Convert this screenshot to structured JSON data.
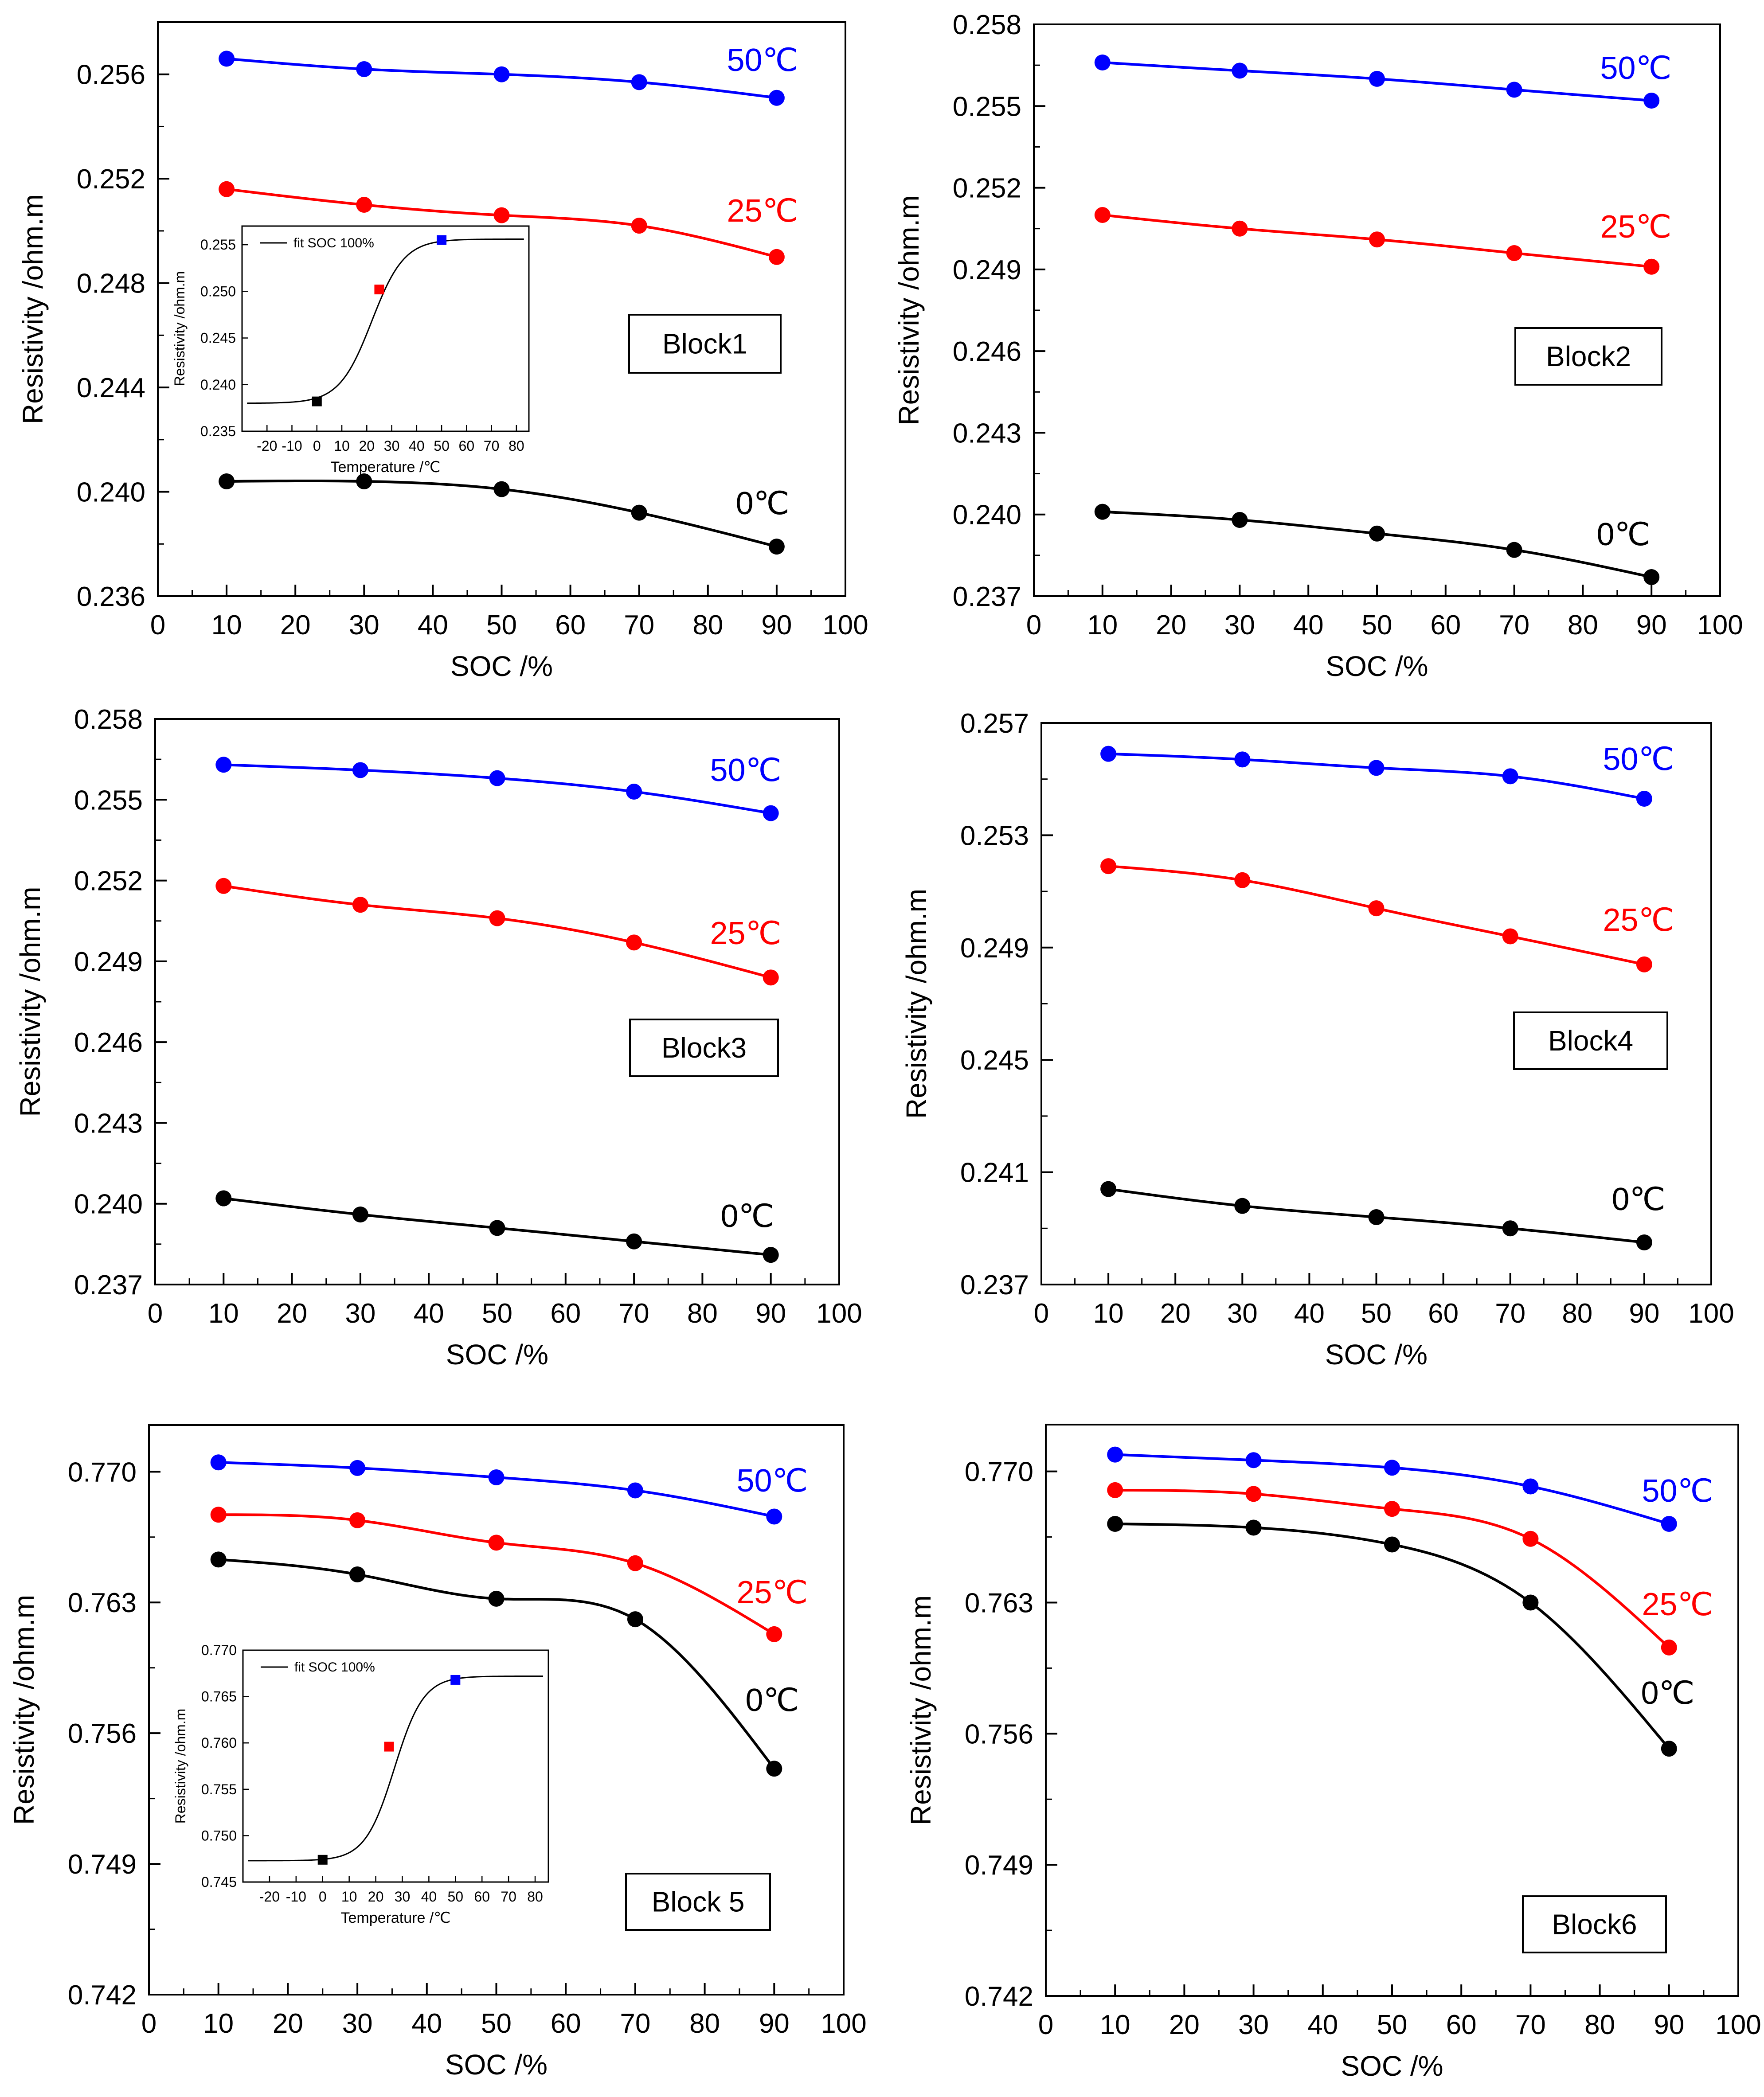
{
  "chart_data": [
    {
      "type": "scatter",
      "title": "",
      "block_label": "Block1",
      "xlabel": "SOC /%",
      "ylabel": "Resistivity /ohm.m",
      "xlim": [
        0,
        100
      ],
      "ylim": [
        0.236,
        0.258
      ],
      "xticks": [
        "0",
        "10",
        "20",
        "30",
        "40",
        "50",
        "60",
        "70",
        "80",
        "90",
        "100"
      ],
      "yticks": [
        "0.236",
        "0.240",
        "0.244",
        "0.248",
        "0.252",
        "0.256"
      ],
      "ytick_values": [
        0.236,
        0.24,
        0.244,
        0.248,
        0.252,
        0.256
      ],
      "series": [
        {
          "name": "50℃",
          "color": "#0000ff",
          "x": [
            10,
            30,
            50,
            70,
            90
          ],
          "y": [
            0.2566,
            0.2562,
            0.256,
            0.2557,
            0.2551
          ]
        },
        {
          "name": "25℃",
          "color": "#ff0000",
          "x": [
            10,
            30,
            50,
            70,
            90
          ],
          "y": [
            0.2516,
            0.251,
            0.2506,
            0.2502,
            0.249
          ]
        },
        {
          "name": "0℃",
          "color": "#000000",
          "x": [
            10,
            30,
            50,
            70,
            90
          ],
          "y": [
            0.2404,
            0.2404,
            0.2401,
            0.2392,
            0.2379
          ]
        }
      ],
      "inset": {
        "legend": "fit SOC 100%",
        "xlabel": "Temperature /℃",
        "ylabel": "Resistivity /ohm.m",
        "xlim": [
          -30,
          85
        ],
        "ylim": [
          0.235,
          0.257
        ],
        "xticks": [
          "-20",
          "-10",
          "0",
          "10",
          "20",
          "30",
          "40",
          "50",
          "60",
          "70",
          "80"
        ],
        "xtick_values": [
          -20,
          -10,
          0,
          10,
          20,
          30,
          40,
          50,
          60,
          70,
          80
        ],
        "yticks": [
          "0.235",
          "0.240",
          "0.245",
          "0.250",
          "0.255"
        ],
        "ytick_values": [
          0.235,
          0.24,
          0.245,
          0.25,
          0.255
        ],
        "fit": {
          "bottom": 0.238,
          "top": 0.2556,
          "center": 22,
          "width": 6.5
        },
        "points": [
          {
            "x": 0,
            "y": 0.2382,
            "color": "#000000"
          },
          {
            "x": 25,
            "y": 0.2502,
            "color": "#ff0000"
          },
          {
            "x": 50,
            "y": 0.2555,
            "color": "#0000ff"
          }
        ]
      }
    },
    {
      "type": "scatter",
      "title": "",
      "block_label": "Block2",
      "xlabel": "SOC /%",
      "ylabel": "Resistivity /ohm.m",
      "xlim": [
        0,
        100
      ],
      "ylim": [
        0.237,
        0.258
      ],
      "xticks": [
        "0",
        "10",
        "20",
        "30",
        "40",
        "50",
        "60",
        "70",
        "80",
        "90",
        "100"
      ],
      "yticks": [
        "0.237",
        "0.240",
        "0.243",
        "0.246",
        "0.249",
        "0.252",
        "0.255",
        "0.258"
      ],
      "ytick_values": [
        0.237,
        0.24,
        0.243,
        0.246,
        0.249,
        0.252,
        0.255,
        0.258
      ],
      "series": [
        {
          "name": "50℃",
          "color": "#0000ff",
          "x": [
            10,
            30,
            50,
            70,
            90
          ],
          "y": [
            0.2566,
            0.2563,
            0.256,
            0.2556,
            0.2552
          ]
        },
        {
          "name": "25℃",
          "color": "#ff0000",
          "x": [
            10,
            30,
            50,
            70,
            90
          ],
          "y": [
            0.251,
            0.2505,
            0.2501,
            0.2496,
            0.2491
          ]
        },
        {
          "name": "0℃",
          "color": "#000000",
          "x": [
            10,
            30,
            50,
            70,
            90
          ],
          "y": [
            0.2401,
            0.2398,
            0.2393,
            0.2387,
            0.2377
          ]
        }
      ]
    },
    {
      "type": "scatter",
      "title": "",
      "block_label": "Block3",
      "xlabel": "SOC /%",
      "ylabel": "Resistivity /ohm.m",
      "xlim": [
        0,
        100
      ],
      "ylim": [
        0.237,
        0.258
      ],
      "xticks": [
        "0",
        "10",
        "20",
        "30",
        "40",
        "50",
        "60",
        "70",
        "80",
        "90",
        "100"
      ],
      "yticks": [
        "0.237",
        "0.240",
        "0.243",
        "0.246",
        "0.249",
        "0.252",
        "0.255",
        "0.258"
      ],
      "ytick_values": [
        0.237,
        0.24,
        0.243,
        0.246,
        0.249,
        0.252,
        0.255,
        0.258
      ],
      "series": [
        {
          "name": "50℃",
          "color": "#0000ff",
          "x": [
            10,
            30,
            50,
            70,
            90
          ],
          "y": [
            0.2563,
            0.2561,
            0.2558,
            0.2553,
            0.2545
          ]
        },
        {
          "name": "25℃",
          "color": "#ff0000",
          "x": [
            10,
            30,
            50,
            70,
            90
          ],
          "y": [
            0.2518,
            0.2511,
            0.2506,
            0.2497,
            0.2484
          ]
        },
        {
          "name": "0℃",
          "color": "#000000",
          "x": [
            10,
            30,
            50,
            70,
            90
          ],
          "y": [
            0.2402,
            0.2396,
            0.2391,
            0.2386,
            0.2381
          ]
        }
      ]
    },
    {
      "type": "scatter",
      "title": "",
      "block_label": "Block4",
      "xlabel": "SOC /%",
      "ylabel": "Resistivity /ohm.m",
      "xlim": [
        0,
        100
      ],
      "ylim": [
        0.237,
        0.257
      ],
      "xticks": [
        "0",
        "10",
        "20",
        "30",
        "40",
        "50",
        "60",
        "70",
        "80",
        "90",
        "100"
      ],
      "yticks": [
        "0.237",
        "0.241",
        "0.245",
        "0.249",
        "0.253",
        "0.257"
      ],
      "ytick_values": [
        0.237,
        0.241,
        0.245,
        0.249,
        0.253,
        0.257
      ],
      "series": [
        {
          "name": "50℃",
          "color": "#0000ff",
          "x": [
            10,
            30,
            50,
            70,
            90
          ],
          "y": [
            0.2559,
            0.2557,
            0.2554,
            0.2551,
            0.2543
          ]
        },
        {
          "name": "25℃",
          "color": "#ff0000",
          "x": [
            10,
            30,
            50,
            70,
            90
          ],
          "y": [
            0.2519,
            0.2514,
            0.2504,
            0.2494,
            0.2484
          ]
        },
        {
          "name": "0℃",
          "color": "#000000",
          "x": [
            10,
            30,
            50,
            70,
            90
          ],
          "y": [
            0.2404,
            0.2398,
            0.2394,
            0.239,
            0.2385
          ]
        }
      ]
    },
    {
      "type": "scatter",
      "title": "",
      "block_label": "Block 5",
      "xlabel": "SOC /%",
      "ylabel": "Resistivity /ohm.m",
      "xlim": [
        0,
        100
      ],
      "ylim": [
        0.742,
        0.7725
      ],
      "xticks": [
        "0",
        "10",
        "20",
        "30",
        "40",
        "50",
        "60",
        "70",
        "80",
        "90",
        "100"
      ],
      "yticks": [
        "0.742",
        "0.749",
        "0.756",
        "0.763",
        "0.770"
      ],
      "ytick_values": [
        0.742,
        0.749,
        0.756,
        0.763,
        0.77
      ],
      "series": [
        {
          "name": "50℃",
          "color": "#0000ff",
          "x": [
            10,
            30,
            50,
            70,
            90
          ],
          "y": [
            0.7705,
            0.7702,
            0.7697,
            0.769,
            0.7676
          ]
        },
        {
          "name": "25℃",
          "color": "#ff0000",
          "x": [
            10,
            30,
            50,
            70,
            90
          ],
          "y": [
            0.7677,
            0.7674,
            0.7662,
            0.7651,
            0.7613
          ]
        },
        {
          "name": "0℃",
          "color": "#000000",
          "x": [
            10,
            30,
            50,
            70,
            90
          ],
          "y": [
            0.7653,
            0.7645,
            0.7632,
            0.7621,
            0.7541
          ]
        }
      ],
      "inset": {
        "legend": "fit SOC 100%",
        "xlabel": "Temperature /℃",
        "ylabel": "Resistivity /ohm.m",
        "xlim": [
          -30,
          85
        ],
        "ylim": [
          0.745,
          0.77
        ],
        "xticks": [
          "-20",
          "-10",
          "0",
          "10",
          "20",
          "30",
          "40",
          "50",
          "60",
          "70",
          "80"
        ],
        "xtick_values": [
          -20,
          -10,
          0,
          10,
          20,
          30,
          40,
          50,
          60,
          70,
          80
        ],
        "yticks": [
          "0.745",
          "0.750",
          "0.755",
          "0.760",
          "0.765",
          "0.770"
        ],
        "ytick_values": [
          0.745,
          0.75,
          0.755,
          0.76,
          0.765,
          0.77
        ],
        "fit": {
          "bottom": 0.7473,
          "top": 0.7672,
          "center": 27,
          "width": 5.5
        },
        "points": [
          {
            "x": 0,
            "y": 0.7474,
            "color": "#000000"
          },
          {
            "x": 25,
            "y": 0.7596,
            "color": "#ff0000"
          },
          {
            "x": 50,
            "y": 0.7668,
            "color": "#0000ff"
          }
        ]
      }
    },
    {
      "type": "scatter",
      "title": "",
      "block_label": "Block6",
      "xlabel": "SOC /%",
      "ylabel": "Resistivity /ohm.m",
      "xlim": [
        0,
        100
      ],
      "ylim": [
        0.742,
        0.7725
      ],
      "xticks": [
        "0",
        "10",
        "20",
        "30",
        "40",
        "50",
        "60",
        "70",
        "80",
        "90",
        "100"
      ],
      "yticks": [
        "0.742",
        "0.749",
        "0.756",
        "0.763",
        "0.770"
      ],
      "ytick_values": [
        0.742,
        0.749,
        0.756,
        0.763,
        0.77
      ],
      "series": [
        {
          "name": "50℃",
          "color": "#0000ff",
          "x": [
            10,
            30,
            50,
            70,
            90
          ],
          "y": [
            0.7709,
            0.7706,
            0.7702,
            0.7692,
            0.7672
          ]
        },
        {
          "name": "25℃",
          "color": "#ff0000",
          "x": [
            10,
            30,
            50,
            70,
            90
          ],
          "y": [
            0.769,
            0.7688,
            0.768,
            0.7664,
            0.7606
          ]
        },
        {
          "name": "0℃",
          "color": "#000000",
          "x": [
            10,
            30,
            50,
            70,
            90
          ],
          "y": [
            0.7672,
            0.767,
            0.7661,
            0.763,
            0.7552
          ]
        }
      ]
    }
  ]
}
